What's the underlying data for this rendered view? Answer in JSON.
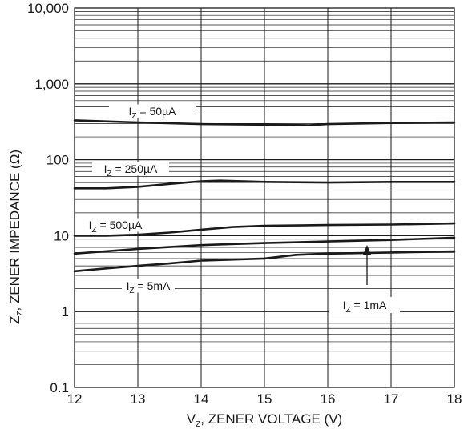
{
  "chart_data": {
    "type": "line",
    "title": "",
    "xlabel": {
      "main": "V",
      "sub": "Z",
      "rest": ", ZENER VOLTAGE (V)"
    },
    "ylabel": {
      "main": "Z",
      "sub": "Z",
      "rest": ", ZENER IMPEDANCE (Ω)"
    },
    "x_scale": "linear",
    "y_scale": "log",
    "xlim": [
      12,
      18
    ],
    "ylim": [
      0.1,
      10000
    ],
    "grid": true,
    "x_ticks": [
      {
        "value": 12,
        "label": "12"
      },
      {
        "value": 13,
        "label": "13"
      },
      {
        "value": 14,
        "label": "14"
      },
      {
        "value": 15,
        "label": "15"
      },
      {
        "value": 16,
        "label": "16"
      },
      {
        "value": 17,
        "label": "17"
      },
      {
        "value": 18,
        "label": "18"
      }
    ],
    "y_ticks": [
      {
        "value": 0.1,
        "label": "0.1"
      },
      {
        "value": 1,
        "label": "1"
      },
      {
        "value": 10,
        "label": "10"
      },
      {
        "value": 100,
        "label": "100"
      },
      {
        "value": 1000,
        "label": "1,000"
      },
      {
        "value": 10000,
        "label": "10,000"
      }
    ],
    "series": [
      {
        "name": "I_Z = 50µA",
        "label": {
          "main": "I",
          "sub": "Z",
          "rest": " = 50µA"
        },
        "x": [
          12,
          13,
          14,
          15,
          15.7,
          16,
          17,
          18
        ],
        "y": [
          330,
          310,
          295,
          290,
          285,
          295,
          305,
          310
        ]
      },
      {
        "name": "I_Z = 250µA",
        "label": {
          "main": "I",
          "sub": "Z",
          "rest": " = 250µA"
        },
        "x": [
          12,
          12.5,
          13,
          13.5,
          14,
          14.3,
          15,
          16,
          17,
          18
        ],
        "y": [
          42,
          42,
          44,
          48,
          52,
          53,
          51,
          50,
          51,
          51
        ]
      },
      {
        "name": "I_Z = 500µA",
        "label": {
          "main": "I",
          "sub": "Z",
          "rest": " = 500µA"
        },
        "x": [
          12,
          12.5,
          13,
          13.5,
          14,
          14.5,
          15,
          16,
          17,
          18
        ],
        "y": [
          10,
          10,
          10.3,
          11,
          12,
          13,
          13.5,
          13.8,
          14,
          14.5
        ]
      },
      {
        "name": "I_Z = 1mA",
        "label": {
          "main": "I",
          "sub": "Z",
          "rest": " = 1mA"
        },
        "x": [
          12,
          13,
          14,
          15,
          16,
          17,
          18
        ],
        "y": [
          5.8,
          6.7,
          7.5,
          8,
          8.4,
          8.8,
          9.4
        ]
      },
      {
        "name": "I_Z = 5mA",
        "label": {
          "main": "I",
          "sub": "Z",
          "rest": " = 5mA"
        },
        "x": [
          12,
          12.5,
          13,
          13.5,
          14,
          15,
          15.5,
          16,
          17,
          18
        ],
        "y": [
          3.4,
          3.7,
          4,
          4.3,
          4.7,
          5,
          5.6,
          5.8,
          6,
          6.2
        ]
      }
    ]
  }
}
